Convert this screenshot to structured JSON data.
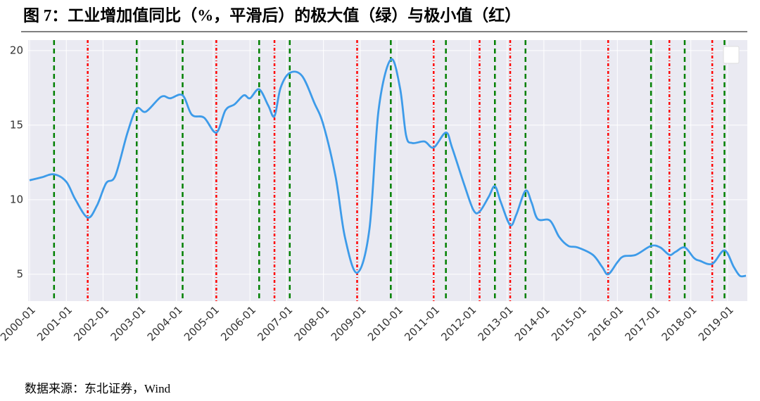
{
  "chart_data": {
    "type": "line",
    "title": "图 7：工业增加值同比（%，平滑后）的极大值（绿）与极小值（红）",
    "source": "数据来源：东北证券，Wind",
    "color": "#3d9be9",
    "x": [
      "2000-01",
      "2000-05",
      "2000-09",
      "2001-01",
      "2001-04",
      "2001-08",
      "2001-11",
      "2002-02",
      "2002-05",
      "2002-09",
      "2002-12",
      "2003-03",
      "2003-08",
      "2003-11",
      "2004-03",
      "2004-06",
      "2004-10",
      "2005-02",
      "2005-05",
      "2005-08",
      "2005-11",
      "2006-01",
      "2006-04",
      "2006-07",
      "2006-09",
      "2006-11",
      "2007-02",
      "2007-06",
      "2007-10",
      "2008-01",
      "2008-05",
      "2008-08",
      "2008-12",
      "2009-04",
      "2009-07",
      "2009-11",
      "2010-02",
      "2010-04",
      "2010-06",
      "2010-10",
      "2011-01",
      "2011-05",
      "2011-07",
      "2011-11",
      "2012-02",
      "2012-04",
      "2012-07",
      "2012-09",
      "2012-11",
      "2013-02",
      "2013-04",
      "2013-07",
      "2013-09",
      "2013-11",
      "2014-03",
      "2014-06",
      "2014-09",
      "2014-12",
      "2015-05",
      "2015-08",
      "2015-10",
      "2016-01",
      "2016-03",
      "2016-07",
      "2016-12",
      "2017-03",
      "2017-06",
      "2017-08",
      "2017-11",
      "2018-02",
      "2018-04",
      "2018-08",
      "2018-12",
      "2019-03",
      "2019-05",
      "2019-07"
    ],
    "values": [
      11.3,
      11.5,
      11.7,
      11.2,
      10.0,
      8.8,
      9.6,
      11.1,
      11.6,
      14.5,
      16.1,
      15.9,
      16.9,
      16.8,
      17.0,
      15.7,
      15.5,
      14.5,
      16.0,
      16.4,
      17.0,
      16.8,
      17.4,
      16.3,
      15.6,
      17.5,
      18.5,
      18.3,
      16.5,
      15.0,
      11.5,
      7.5,
      5.1,
      8.0,
      16.0,
      19.4,
      17.5,
      14.3,
      13.8,
      13.9,
      13.5,
      14.5,
      13.5,
      11.0,
      9.3,
      9.2,
      10.2,
      10.9,
      9.8,
      8.3,
      9.0,
      10.6,
      9.8,
      8.7,
      8.6,
      7.5,
      6.9,
      6.8,
      6.3,
      5.5,
      5.0,
      5.8,
      6.2,
      6.3,
      6.9,
      6.8,
      6.3,
      6.5,
      6.8,
      6.1,
      5.9,
      5.7,
      6.6,
      5.5,
      4.9,
      4.9
    ],
    "max_lines": {
      "color": "#008000",
      "x": [
        "2000-09",
        "2002-12",
        "2004-03",
        "2006-04",
        "2007-02",
        "2009-11",
        "2011-05",
        "2012-09",
        "2013-07",
        "2016-12",
        "2017-11",
        "2018-12"
      ]
    },
    "min_lines": {
      "color": "#ff0000",
      "x": [
        "2001-08",
        "2005-02",
        "2006-09",
        "2008-12",
        "2011-01",
        "2012-04",
        "2013-02",
        "2015-10",
        "2017-06",
        "2018-08"
      ]
    },
    "xlim": [
      "2000-01",
      "2019-07"
    ],
    "xticks": [
      "2000-01",
      "2001-01",
      "2002-01",
      "2003-01",
      "2004-01",
      "2005-01",
      "2006-01",
      "2007-01",
      "2008-01",
      "2009-01",
      "2010-01",
      "2011-01",
      "2012-01",
      "2013-01",
      "2014-01",
      "2015-01",
      "2016-01",
      "2017-01",
      "2018-01",
      "2019-01"
    ],
    "ylim": [
      3.2,
      20.7
    ],
    "yticks": [
      5,
      10,
      15,
      20
    ],
    "grid": true
  }
}
